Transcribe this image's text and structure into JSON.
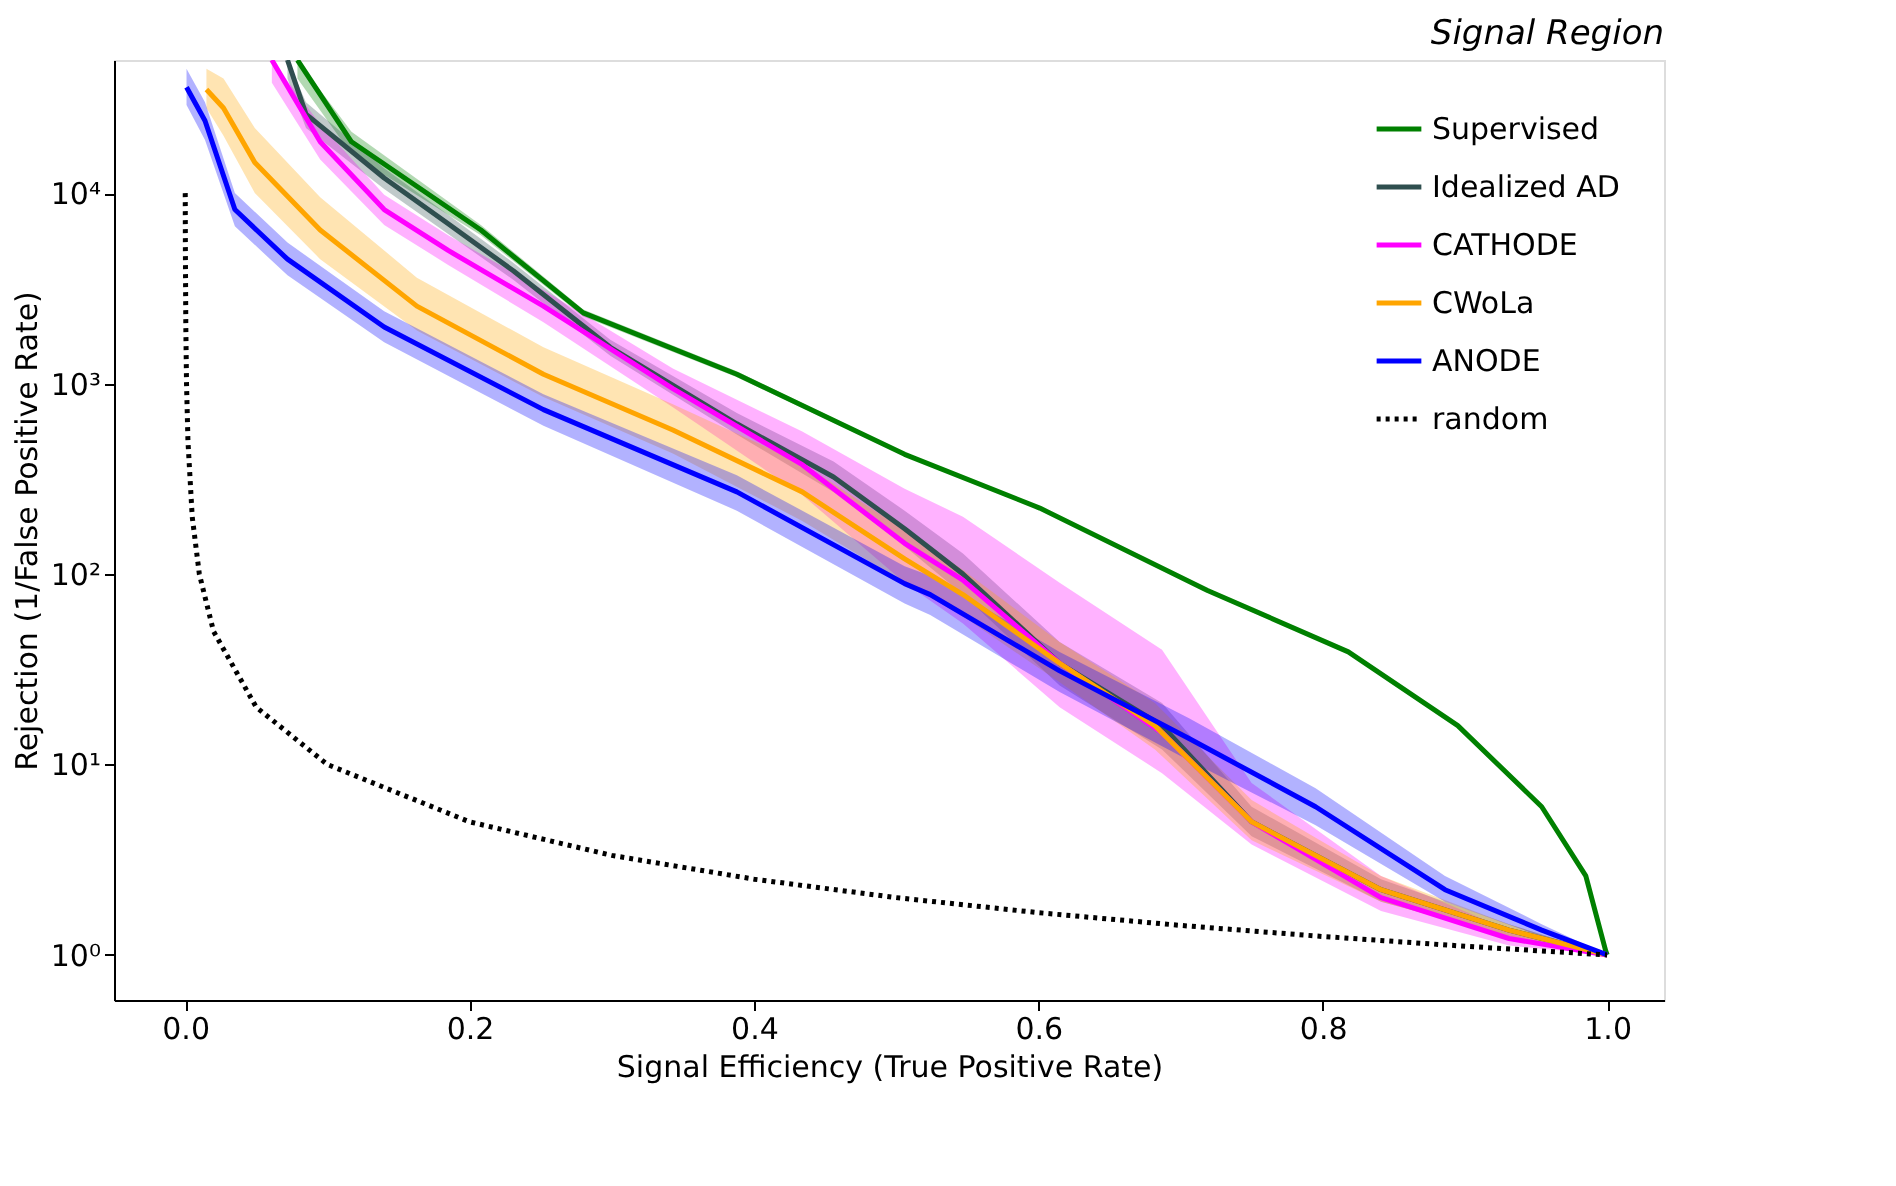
{
  "chart_data": {
    "type": "line",
    "title": "Signal Region",
    "xlabel": "Signal Efficiency (True Positive Rate)",
    "ylabel": "Rejection (1/False Positive Rate)",
    "log": "y",
    "grid": false,
    "legend": "top right",
    "xlim": [
      -0.05,
      1.04
    ],
    "ylim": [
      0.58,
      50000
    ],
    "xticks": [
      {
        "value": 0,
        "label": "0.0"
      },
      0.2,
      0.4,
      0.6,
      0.8,
      {
        "value": 1,
        "label": "1.0"
      }
    ],
    "yticks": [
      {
        "value": 1,
        "label": "10⁰"
      },
      {
        "value": 10,
        "label": "10¹"
      },
      {
        "value": 100,
        "label": "10²"
      },
      {
        "value": 1000,
        "label": "10³"
      },
      {
        "value": 10000,
        "label": "10⁴"
      }
    ],
    "series": [
      {
        "name": "Supervised",
        "color": "#008000",
        "line_style": "solid",
        "x": [
          0.079,
          0.117,
          0.208,
          0.28,
          0.388,
          0.506,
          0.601,
          0.719,
          0.818,
          0.895,
          0.954,
          0.985,
          0.999,
          1.0
        ],
        "values": [
          50000,
          18600,
          6400,
          2350,
          1120,
          425,
          222,
          82,
          39,
          16,
          6,
          2.6,
          1.05,
          1
        ],
        "lower": [
          40000,
          16000,
          6000,
          2250,
          1080,
          415,
          218,
          80,
          38,
          15.7,
          5.9,
          2.55,
          1.04,
          1
        ],
        "upper": [
          50000,
          21000,
          6800,
          2450,
          1160,
          435,
          226,
          84,
          40,
          16.3,
          6.1,
          2.65,
          1.06,
          1
        ]
      },
      {
        "name": "Idealized AD",
        "color": "#2f4f4f",
        "line_style": "solid",
        "x": [
          0.072,
          0.085,
          0.14,
          0.185,
          0.231,
          0.299,
          0.388,
          0.456,
          0.506,
          0.547,
          0.615,
          0.687,
          0.75,
          0.841,
          0.931,
          1.0
        ],
        "values": [
          50000,
          26000,
          12000,
          6900,
          3900,
          1550,
          615,
          323,
          173,
          100,
          34,
          16,
          5,
          2.2,
          1.35,
          1
        ],
        "lower": [
          40000,
          22000,
          10500,
          6100,
          3500,
          1400,
          540,
          270,
          140,
          78,
          26,
          12,
          4.2,
          1.9,
          1.25,
          1
        ],
        "upper": [
          50000,
          30000,
          13500,
          7700,
          4300,
          1700,
          700,
          390,
          215,
          128,
          44,
          21,
          6,
          2.5,
          1.45,
          1
        ]
      },
      {
        "name": "CATHODE",
        "color": "#ff00ff",
        "line_style": "solid",
        "x": [
          0.061,
          0.095,
          0.14,
          0.185,
          0.252,
          0.343,
          0.434,
          0.506,
          0.547,
          0.615,
          0.687,
          0.75,
          0.841,
          0.931,
          1.0
        ],
        "values": [
          50000,
          18600,
          8200,
          5000,
          2550,
          940,
          375,
          145,
          93,
          34,
          14.7,
          5,
          2,
          1.22,
          1
        ],
        "lower": [
          38000,
          15000,
          6800,
          4200,
          2100,
          750,
          260,
          90,
          55,
          20,
          9,
          3.8,
          1.7,
          1.12,
          1
        ],
        "upper": [
          50000,
          23000,
          9800,
          6000,
          3100,
          1200,
          560,
          280,
          200,
          90,
          40,
          8,
          2.6,
          1.35,
          1
        ]
      },
      {
        "name": "CWoLa",
        "color": "#ffa500",
        "line_style": "solid",
        "x": [
          0.015,
          0.027,
          0.049,
          0.095,
          0.163,
          0.252,
          0.343,
          0.434,
          0.506,
          0.547,
          0.615,
          0.682,
          0.75,
          0.841,
          0.931,
          1.0
        ],
        "values": [
          35000,
          28000,
          14500,
          6400,
          2550,
          1120,
          570,
          270,
          120,
          78,
          34,
          16,
          5,
          2.2,
          1.35,
          1
        ],
        "lower": [
          28000,
          20000,
          10000,
          4500,
          1900,
          850,
          430,
          190,
          90,
          60,
          27,
          12,
          4,
          1.9,
          1.25,
          1
        ],
        "upper": [
          45000,
          40000,
          22000,
          9500,
          3600,
          1550,
          780,
          380,
          170,
          105,
          44,
          21,
          6.5,
          2.6,
          1.45,
          1
        ]
      },
      {
        "name": "ANODE",
        "color": "#0000ff",
        "line_style": "solid",
        "x": [
          0.001,
          0.014,
          0.035,
          0.072,
          0.14,
          0.252,
          0.388,
          0.506,
          0.524,
          0.615,
          0.706,
          0.795,
          0.886,
          0.954,
          1.0
        ],
        "values": [
          36000,
          24000,
          8200,
          4500,
          1980,
          730,
          270,
          89,
          78,
          31,
          13.7,
          6,
          2.2,
          1.35,
          1
        ],
        "lower": [
          29000,
          19000,
          6700,
          3700,
          1650,
          600,
          215,
          70,
          61,
          24,
          10.5,
          4.8,
          1.9,
          1.25,
          1
        ],
        "upper": [
          45000,
          30000,
          10000,
          5500,
          2400,
          880,
          330,
          110,
          98,
          39,
          17.5,
          7.5,
          2.6,
          1.45,
          1
        ]
      },
      {
        "name": "random",
        "color": "#000000",
        "line_style": "dotted",
        "x": [
          0.0001,
          0.0002,
          0.0005,
          0.001,
          0.002,
          0.005,
          0.01,
          0.02,
          0.05,
          0.1,
          0.2,
          0.3,
          0.4,
          0.5,
          0.6,
          0.7,
          0.8,
          0.9,
          1.0
        ],
        "values": [
          10000,
          5000,
          2000,
          1000,
          500,
          200,
          100,
          50,
          20,
          10,
          5,
          3.333,
          2.5,
          2,
          1.667,
          1.429,
          1.25,
          1.111,
          1
        ]
      }
    ]
  }
}
